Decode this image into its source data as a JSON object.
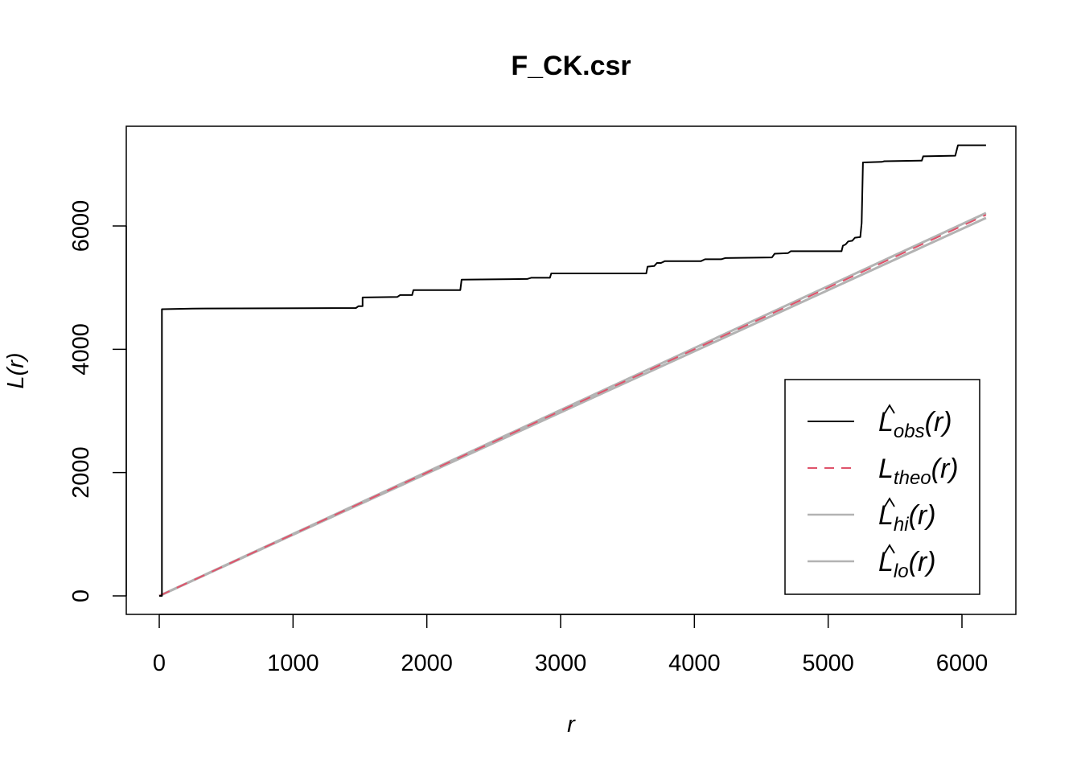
{
  "chart_data": {
    "type": "line",
    "title": "F_CK.csr",
    "xlabel": "r",
    "ylabel": "L(r)",
    "xlim": [
      0,
      6200
    ],
    "ylim": [
      0,
      7300
    ],
    "x_ticks": [
      0,
      1000,
      2000,
      3000,
      4000,
      5000,
      6000
    ],
    "y_ticks": [
      0,
      2000,
      4000,
      6000
    ],
    "x_tick_labels": [
      "0",
      "1000",
      "2000",
      "3000",
      "4000",
      "5000",
      "6000"
    ],
    "y_tick_labels": [
      "0",
      "2000",
      "4000",
      "6000"
    ],
    "legend_position": "bottom-right",
    "colors": {
      "obs": "#000000",
      "theo": "#df536b",
      "hi": "#b3b3b3",
      "lo": "#b3b3b3"
    },
    "series": [
      {
        "key": "obs",
        "style": "solid",
        "x": [
          0,
          20,
          20,
          250,
          1470,
          1490,
          1520,
          1520,
          1780,
          1800,
          1890,
          1900,
          2250,
          2260,
          2750,
          2780,
          2920,
          2930,
          3640,
          3650,
          3700,
          3720,
          3750,
          3780,
          4050,
          4080,
          4200,
          4230,
          4580,
          4600,
          4700,
          4720,
          5100,
          5110,
          5130,
          5150,
          5180,
          5200,
          5240,
          5250,
          5260,
          5400,
          5420,
          5700,
          5710,
          5950,
          5970,
          6180
        ],
        "y": [
          0,
          0,
          4650,
          4660,
          4670,
          4700,
          4700,
          4840,
          4850,
          4880,
          4880,
          4960,
          4960,
          5130,
          5140,
          5160,
          5160,
          5230,
          5230,
          5340,
          5350,
          5400,
          5400,
          5430,
          5430,
          5460,
          5460,
          5480,
          5490,
          5550,
          5560,
          5590,
          5590,
          5680,
          5700,
          5750,
          5760,
          5810,
          5820,
          6050,
          7030,
          7040,
          7050,
          7060,
          7130,
          7140,
          7310,
          7310
        ]
      },
      {
        "key": "theo",
        "style": "dashed",
        "x": [
          0,
          6180
        ],
        "y": [
          0,
          6180
        ]
      },
      {
        "key": "hi",
        "style": "solid",
        "x": [
          0,
          6180
        ],
        "y": [
          0,
          6210
        ]
      },
      {
        "key": "lo",
        "style": "solid",
        "x": [
          0,
          6180
        ],
        "y": [
          0,
          6130
        ]
      }
    ],
    "legend": [
      {
        "key": "obs",
        "hat": true,
        "main": "L",
        "sub": "obs",
        "arg": "(r)"
      },
      {
        "key": "theo",
        "hat": false,
        "main": "L",
        "sub": "theo",
        "arg": "(r)"
      },
      {
        "key": "hi",
        "hat": true,
        "main": "L",
        "sub": "hi",
        "arg": "(r)"
      },
      {
        "key": "lo",
        "hat": true,
        "main": "L",
        "sub": "lo",
        "arg": "(r)"
      }
    ]
  }
}
